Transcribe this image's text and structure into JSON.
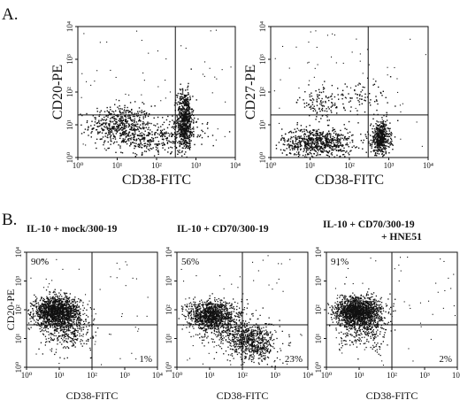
{
  "panel_a_label": "A.",
  "panel_b_label": "B.",
  "chart_data": [
    {
      "type": "scatter",
      "panel": "A",
      "title": "",
      "xlabel": "CD38-FITC",
      "ylabel": "CD20-PE",
      "x_scale": "log",
      "y_scale": "log",
      "xlim": [
        1,
        10000
      ],
      "ylim": [
        1,
        10000
      ],
      "x_ticks": [
        "10⁰",
        "10¹",
        "10²",
        "10³",
        "10⁴"
      ],
      "y_ticks": [
        "10⁰",
        "10¹",
        "10²",
        "10³",
        "10⁴"
      ],
      "quadrant_gate": {
        "x": 300,
        "y": 20
      },
      "quadrant_labels": [],
      "populations": [
        {
          "center": [
            12,
            10
          ],
          "spread": [
            0.4,
            0.3
          ],
          "count": 520
        },
        {
          "center": [
            500,
            15
          ],
          "spread": [
            0.1,
            0.45
          ],
          "count": 620
        },
        {
          "center": [
            250,
            5
          ],
          "spread": [
            0.45,
            0.25
          ],
          "count": 230
        },
        {
          "center": [
            40,
            3
          ],
          "spread": [
            0.35,
            0.18
          ],
          "count": 120
        }
      ]
    },
    {
      "type": "scatter",
      "panel": "A",
      "title": "",
      "xlabel": "CD38-FITC",
      "ylabel": "CD27-PE",
      "x_scale": "log",
      "y_scale": "log",
      "xlim": [
        1,
        10000
      ],
      "ylim": [
        1,
        10000
      ],
      "x_ticks": [
        "10⁰",
        "10¹",
        "10²",
        "10³",
        "10⁴"
      ],
      "y_ticks": [
        "10⁰",
        "10¹",
        "10²",
        "10³",
        "10⁴"
      ],
      "quadrant_gate": {
        "x": 300,
        "y": 20
      },
      "quadrant_labels": [],
      "populations": [
        {
          "center": [
            15,
            3
          ],
          "spread": [
            0.45,
            0.22
          ],
          "count": 700
        },
        {
          "center": [
            600,
            4
          ],
          "spread": [
            0.12,
            0.25
          ],
          "count": 480
        },
        {
          "center": [
            20,
            50
          ],
          "spread": [
            0.3,
            0.25
          ],
          "count": 120
        },
        {
          "center": [
            200,
            60
          ],
          "spread": [
            0.4,
            0.25
          ],
          "count": 80
        }
      ]
    },
    {
      "type": "scatter",
      "panel": "B",
      "title": "IL-10  +  mock/300-19",
      "title_line2": "",
      "xlabel": "CD38-FITC",
      "ylabel": "CD20-PE",
      "x_scale": "log",
      "y_scale": "log",
      "xlim": [
        1,
        10000
      ],
      "ylim": [
        1,
        10000
      ],
      "x_ticks": [
        "10⁰",
        "10¹",
        "10²",
        "10³",
        "10⁴"
      ],
      "y_ticks": [
        "10⁰",
        "10¹",
        "10²",
        "10³",
        "10⁴"
      ],
      "quadrant_gate": {
        "x": 100,
        "y": 30
      },
      "quadrant_labels": [
        {
          "text": "90%",
          "corner": "top-left"
        },
        {
          "text": "1%",
          "corner": "bottom-right"
        }
      ],
      "populations": [
        {
          "center": [
            8,
            90
          ],
          "spread": [
            0.35,
            0.25
          ],
          "count": 1500
        },
        {
          "center": [
            15,
            20
          ],
          "spread": [
            0.4,
            0.35
          ],
          "count": 350
        }
      ]
    },
    {
      "type": "scatter",
      "panel": "B",
      "title": "IL-10  +  CD70/300-19",
      "title_line2": "",
      "xlabel": "CD38-FITC",
      "ylabel": "",
      "x_scale": "log",
      "y_scale": "log",
      "xlim": [
        1,
        10000
      ],
      "ylim": [
        1,
        10000
      ],
      "x_ticks": [
        "10⁰",
        "10¹",
        "10²",
        "10³",
        "10⁴"
      ],
      "y_ticks": [
        "10⁰",
        "10¹",
        "10²",
        "10³",
        "10⁴"
      ],
      "quadrant_gate": {
        "x": 100,
        "y": 30
      },
      "quadrant_labels": [
        {
          "text": "56%",
          "corner": "top-left"
        },
        {
          "text": "23%",
          "corner": "bottom-right"
        }
      ],
      "populations": [
        {
          "center": [
            10,
            70
          ],
          "spread": [
            0.35,
            0.25
          ],
          "count": 1000
        },
        {
          "center": [
            200,
            8
          ],
          "spread": [
            0.35,
            0.35
          ],
          "count": 650
        },
        {
          "center": [
            30,
            25
          ],
          "spread": [
            0.4,
            0.35
          ],
          "count": 300
        }
      ]
    },
    {
      "type": "scatter",
      "panel": "B",
      "title": "IL-10  +  CD70/300-19",
      "title_line2": "+ HNE51",
      "xlabel": "CD38-FITC",
      "ylabel": "",
      "x_scale": "log",
      "y_scale": "log",
      "xlim": [
        1,
        10000
      ],
      "ylim": [
        1,
        10000
      ],
      "x_ticks": [
        "10⁰",
        "10¹",
        "10²",
        "10³",
        "10⁴"
      ],
      "y_ticks": [
        "10⁰",
        "10¹",
        "10²",
        "10³",
        "10⁴"
      ],
      "quadrant_gate": {
        "x": 100,
        "y": 30
      },
      "quadrant_labels": [
        {
          "text": "91%",
          "corner": "top-left"
        },
        {
          "text": "2%",
          "corner": "bottom-right"
        }
      ],
      "populations": [
        {
          "center": [
            9,
            90
          ],
          "spread": [
            0.35,
            0.25
          ],
          "count": 1500
        },
        {
          "center": [
            15,
            20
          ],
          "spread": [
            0.4,
            0.35
          ],
          "count": 300
        }
      ]
    }
  ]
}
